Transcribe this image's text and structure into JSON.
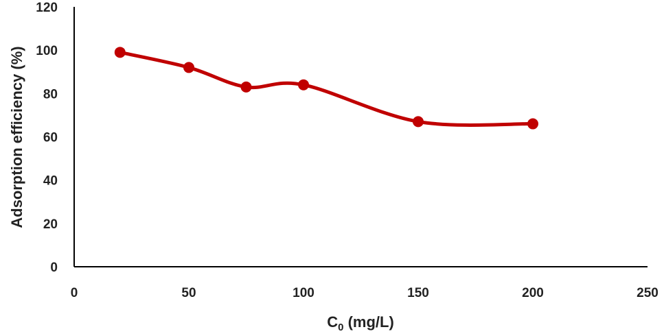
{
  "chart_data": {
    "type": "line",
    "title": "",
    "xlabel": "C",
    "xlabel_sub": "0",
    "xlabel_unit": " (mg/L)",
    "ylabel": "Adsorption efficiency (%)",
    "xlim": [
      0,
      250
    ],
    "ylim": [
      0,
      120
    ],
    "x_ticks": [
      "0",
      "50",
      "100",
      "150",
      "200",
      "250"
    ],
    "y_ticks": [
      "0",
      "20",
      "40",
      "60",
      "80",
      "100",
      "120"
    ],
    "grid": false,
    "smooth": true,
    "series": [
      {
        "color": "#c00000",
        "x": [
          20,
          50,
          75,
          100,
          150,
          200
        ],
        "y": [
          99,
          92,
          83,
          84,
          67,
          66
        ]
      }
    ]
  }
}
